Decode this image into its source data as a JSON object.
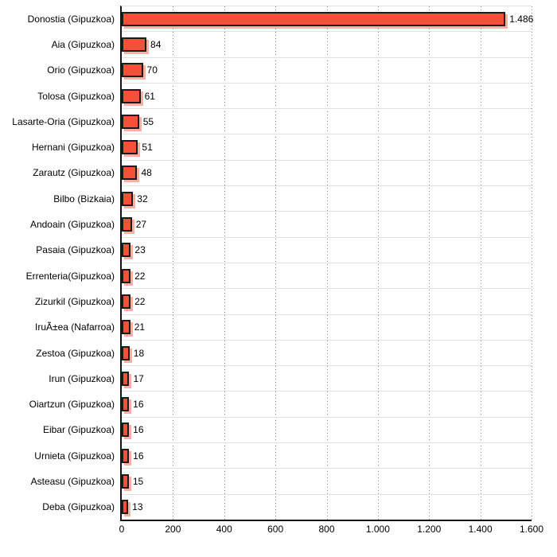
{
  "chart_data": {
    "type": "bar",
    "orientation": "horizontal",
    "title": "",
    "xlabel": "",
    "ylabel": "",
    "categories": [
      "Donostia (Gipuzkoa)",
      "Aia (Gipuzkoa)",
      "Orio (Gipuzkoa)",
      "Tolosa (Gipuzkoa)",
      "Lasarte-Oria (Gipuzkoa)",
      "Hernani (Gipuzkoa)",
      "Zarautz (Gipuzkoa)",
      "Bilbo (Bizkaia)",
      "Andoain (Gipuzkoa)",
      "Pasaia (Gipuzkoa)",
      "Errenteria(Gipuzkoa)",
      "Zizurkil (Gipuzkoa)",
      "IruÃ±ea (Nafarroa)",
      "Zestoa (Gipuzkoa)",
      "Irun (Gipuzkoa)",
      "Oiartzun (Gipuzkoa)",
      "Eibar (Gipuzkoa)",
      "Urnieta (Gipuzkoa)",
      "Asteasu (Gipuzkoa)",
      "Deba (Gipuzkoa)"
    ],
    "values": [
      1486,
      84,
      70,
      61,
      55,
      51,
      48,
      32,
      27,
      23,
      22,
      22,
      21,
      18,
      17,
      16,
      16,
      16,
      15,
      13
    ],
    "value_labels": [
      "1.486",
      "84",
      "70",
      "61",
      "55",
      "51",
      "48",
      "32",
      "27",
      "23",
      "22",
      "22",
      "21",
      "18",
      "17",
      "16",
      "16",
      "16",
      "15",
      "13"
    ],
    "xlim": [
      0,
      1600
    ],
    "x_ticks": [
      0,
      200,
      400,
      600,
      800,
      1000,
      1200,
      1400,
      1600
    ],
    "x_tick_labels": [
      "0",
      "200",
      "400",
      "600",
      "800",
      "1.000",
      "1.200",
      "1.400",
      "1.600"
    ],
    "grid": "vertical-dotted",
    "legend": "none",
    "colors": {
      "bar_fill": "#f45138",
      "bar_border": "#1b1b1b",
      "bar_shadow": "#f8b0a2",
      "row_sep": "#e1e1e1",
      "gridline": "#8c8c8c",
      "axis": "#141414",
      "text": "#000000"
    }
  }
}
